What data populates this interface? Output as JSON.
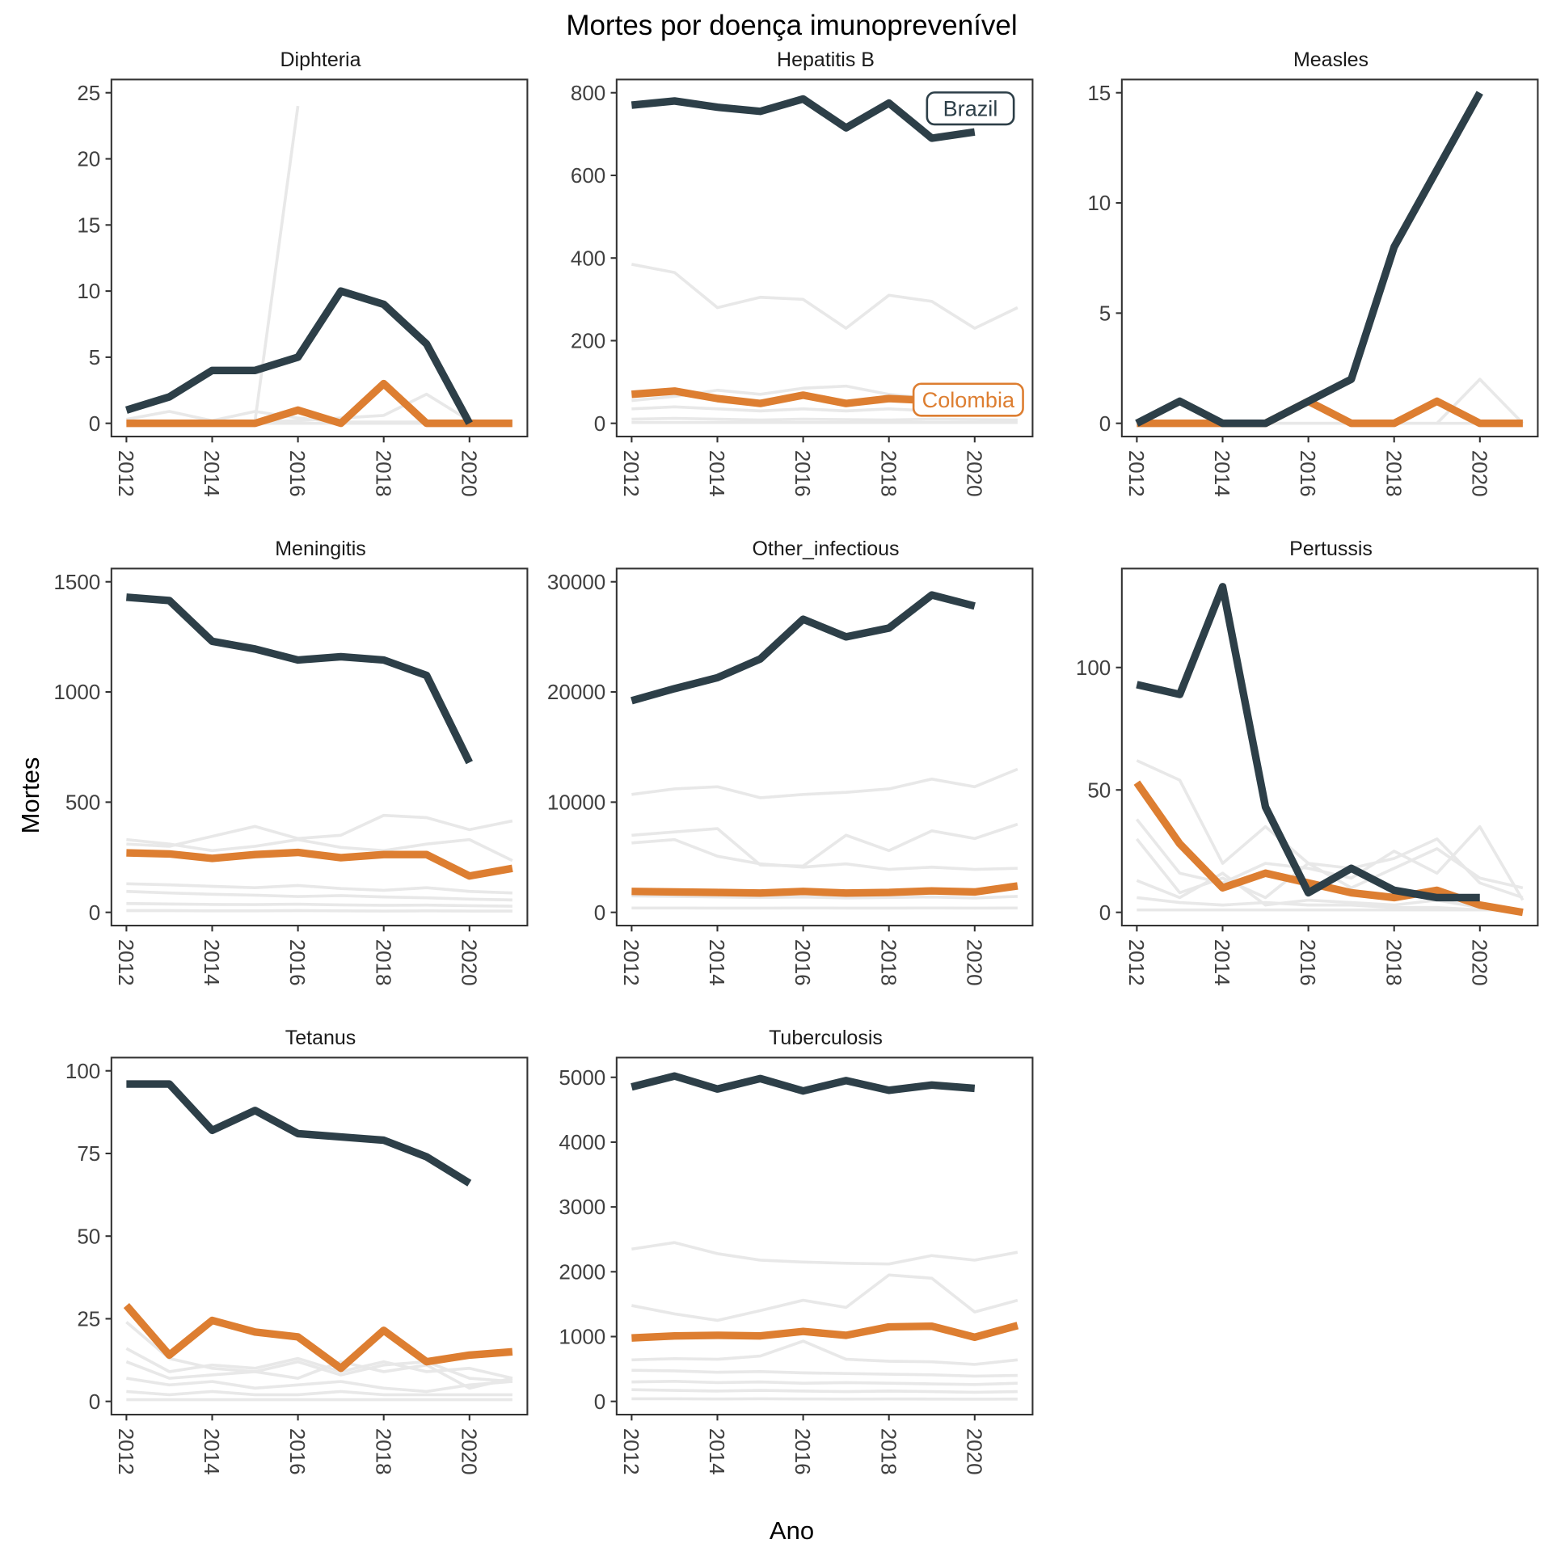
{
  "figure": {
    "title": "Mortes por doença imunoprevenível",
    "ylabel": "Mortes",
    "xlabel": "Ano"
  },
  "colors": {
    "brazil": "#2d3f48",
    "colombia": "#dd7e31",
    "other": "#e8e8e8",
    "axis": "#333333",
    "tick_text": "#404040"
  },
  "x": {
    "years": [
      2012,
      2013,
      2014,
      2015,
      2016,
      2017,
      2018,
      2019,
      2020,
      2021
    ],
    "ticks": [
      2012,
      2014,
      2016,
      2018,
      2020
    ]
  },
  "legend": {
    "brazil_label": "Brazil",
    "colombia_label": "Colombia"
  },
  "chart_data": [
    {
      "type": "line",
      "title": "Diphteria",
      "ylim": [
        0,
        25
      ],
      "yticks": [
        0,
        5,
        10,
        15,
        20,
        25
      ],
      "series": [
        {
          "name": "Brazil",
          "role": "brazil",
          "values": [
            1,
            2,
            4,
            4,
            5,
            10,
            9,
            6,
            0,
            null
          ]
        },
        {
          "name": "Colombia",
          "role": "colombia",
          "values": [
            0,
            0,
            0,
            0,
            1,
            0,
            3,
            0,
            0,
            0
          ]
        },
        {
          "name": "other-1",
          "role": "other",
          "values": [
            null,
            null,
            null,
            0.2,
            24,
            null,
            null,
            null,
            null,
            null
          ]
        },
        {
          "name": "other-2",
          "role": "other",
          "values": [
            0.3,
            0.9,
            0.2,
            0.9,
            0.4,
            0.1,
            0.1,
            0.1,
            0.1,
            0.1
          ]
        },
        {
          "name": "other-3",
          "role": "other",
          "values": [
            0.1,
            0.1,
            0.1,
            0.1,
            0.2,
            0.4,
            0.6,
            2.2,
            0.2,
            0.1
          ]
        },
        {
          "name": "other-4",
          "role": "other",
          "values": [
            0,
            0,
            0,
            0,
            0,
            0,
            0,
            0,
            0,
            0
          ]
        }
      ],
      "annotations": []
    },
    {
      "type": "line",
      "title": "Hepatitis B",
      "ylim": [
        0,
        800
      ],
      "yticks": [
        0,
        200,
        400,
        600,
        800
      ],
      "series": [
        {
          "name": "Brazil",
          "role": "brazil",
          "values": [
            770,
            780,
            765,
            755,
            785,
            715,
            775,
            690,
            705,
            null
          ]
        },
        {
          "name": "Colombia",
          "role": "colombia",
          "values": [
            70,
            78,
            60,
            48,
            68,
            48,
            60,
            55,
            58,
            65
          ]
        },
        {
          "name": "other-1",
          "role": "other",
          "values": [
            385,
            365,
            280,
            305,
            300,
            230,
            310,
            295,
            230,
            280
          ]
        },
        {
          "name": "other-2",
          "role": "other",
          "values": [
            55,
            65,
            80,
            70,
            85,
            90,
            70,
            60,
            55,
            50
          ]
        },
        {
          "name": "other-3",
          "role": "other",
          "values": [
            35,
            40,
            35,
            30,
            35,
            30,
            35,
            30,
            25,
            30
          ]
        },
        {
          "name": "other-4",
          "role": "other",
          "values": [
            10,
            12,
            10,
            8,
            10,
            9,
            8,
            10,
            9,
            8
          ]
        },
        {
          "name": "other-5",
          "role": "other",
          "values": [
            2,
            2,
            2,
            2,
            2,
            2,
            2,
            2,
            2,
            2
          ]
        }
      ],
      "annotations": [
        {
          "label": "Brazil",
          "role": "brazil",
          "x": 2019.9,
          "y": 762
        },
        {
          "label": "Colombia",
          "role": "colombia",
          "x": 2019.85,
          "y": 57
        }
      ]
    },
    {
      "type": "line",
      "title": "Measles",
      "ylim": [
        0,
        15
      ],
      "yticks": [
        0,
        5,
        10,
        15
      ],
      "series": [
        {
          "name": "Brazil",
          "role": "brazil",
          "values": [
            0,
            1,
            0,
            0,
            1,
            2,
            8,
            11.5,
            15,
            null
          ]
        },
        {
          "name": "Colombia",
          "role": "colombia",
          "values": [
            0,
            0,
            0,
            0,
            1,
            0,
            0,
            1,
            0,
            0
          ]
        },
        {
          "name": "other-1",
          "role": "other",
          "values": [
            0,
            0,
            0,
            0,
            0,
            0,
            0,
            0,
            2,
            0
          ]
        },
        {
          "name": "other-2",
          "role": "other",
          "values": [
            0,
            0,
            0,
            0,
            0,
            0,
            0,
            0,
            0,
            0
          ]
        }
      ],
      "annotations": []
    },
    {
      "type": "line",
      "title": "Meningitis",
      "ylim": [
        0,
        1500
      ],
      "yticks": [
        0,
        500,
        1000,
        1500
      ],
      "series": [
        {
          "name": "Brazil",
          "role": "brazil",
          "values": [
            1430,
            1415,
            1230,
            1195,
            1145,
            1160,
            1145,
            1075,
            680,
            null
          ]
        },
        {
          "name": "Colombia",
          "role": "colombia",
          "values": [
            270,
            265,
            245,
            262,
            272,
            248,
            262,
            262,
            165,
            200
          ]
        },
        {
          "name": "other-1",
          "role": "other",
          "values": [
            310,
            300,
            345,
            390,
            335,
            350,
            440,
            430,
            375,
            415
          ]
        },
        {
          "name": "other-2",
          "role": "other",
          "values": [
            330,
            310,
            280,
            300,
            330,
            295,
            280,
            310,
            330,
            235
          ]
        },
        {
          "name": "other-3",
          "role": "other",
          "values": [
            130,
            125,
            118,
            112,
            122,
            108,
            100,
            112,
            95,
            88
          ]
        },
        {
          "name": "other-4",
          "role": "other",
          "values": [
            95,
            88,
            82,
            78,
            72,
            76,
            70,
            66,
            60,
            56
          ]
        },
        {
          "name": "other-5",
          "role": "other",
          "values": [
            40,
            38,
            36,
            35,
            37,
            34,
            32,
            33,
            30,
            28
          ]
        },
        {
          "name": "other-6",
          "role": "other",
          "values": [
            8,
            8,
            7,
            7,
            8,
            7,
            6,
            7,
            6,
            6
          ]
        }
      ],
      "annotations": []
    },
    {
      "type": "line",
      "title": "Other_infectious",
      "ylim": [
        0,
        30000
      ],
      "yticks": [
        0,
        10000,
        20000,
        30000
      ],
      "series": [
        {
          "name": "Brazil",
          "role": "brazil",
          "values": [
            19200,
            20300,
            21300,
            23000,
            26600,
            25000,
            25800,
            28800,
            27800,
            null
          ]
        },
        {
          "name": "Colombia",
          "role": "colombia",
          "values": [
            1900,
            1850,
            1800,
            1750,
            1900,
            1750,
            1800,
            1950,
            1850,
            2400
          ]
        },
        {
          "name": "other-1",
          "role": "other",
          "values": [
            10700,
            11200,
            11400,
            10400,
            10700,
            10900,
            11200,
            12100,
            11400,
            13000
          ]
        },
        {
          "name": "other-2",
          "role": "other",
          "values": [
            7000,
            7300,
            7600,
            4300,
            4200,
            7000,
            5600,
            7400,
            6700,
            8000
          ]
        },
        {
          "name": "other-3",
          "role": "other",
          "values": [
            6300,
            6600,
            5100,
            4400,
            4100,
            4400,
            3900,
            4100,
            3900,
            4000
          ]
        },
        {
          "name": "other-4",
          "role": "other",
          "values": [
            1500,
            1450,
            1400,
            1350,
            1400,
            1300,
            1350,
            1400,
            1300,
            1450
          ]
        },
        {
          "name": "other-5",
          "role": "other",
          "values": [
            400,
            400,
            380,
            380,
            400,
            380,
            380,
            400,
            380,
            400
          ]
        }
      ],
      "annotations": []
    },
    {
      "type": "line",
      "title": "Pertussis",
      "ylim": [
        0,
        135
      ],
      "yticks": [
        0,
        50,
        100
      ],
      "series": [
        {
          "name": "Brazil",
          "role": "brazil",
          "values": [
            93,
            89,
            133,
            43,
            8,
            18,
            9,
            6,
            6,
            null
          ]
        },
        {
          "name": "Colombia",
          "role": "colombia",
          "values": [
            53,
            28,
            10,
            16,
            12,
            8,
            6,
            9,
            3,
            0
          ]
        },
        {
          "name": "other-1",
          "role": "other",
          "values": [
            62,
            54,
            20,
            35,
            20,
            18,
            22,
            30,
            12,
            6
          ]
        },
        {
          "name": "other-2",
          "role": "other",
          "values": [
            38,
            16,
            12,
            20,
            18,
            14,
            25,
            16,
            35,
            5
          ]
        },
        {
          "name": "other-3",
          "role": "other",
          "values": [
            30,
            8,
            14,
            6,
            20,
            10,
            18,
            26,
            14,
            10
          ]
        },
        {
          "name": "other-4",
          "role": "other",
          "values": [
            13,
            6,
            16,
            3,
            5,
            4,
            3,
            5,
            2,
            1
          ]
        },
        {
          "name": "other-5",
          "role": "other",
          "values": [
            6,
            4,
            3,
            4,
            3,
            3,
            2,
            2,
            1,
            1
          ]
        },
        {
          "name": "other-6",
          "role": "other",
          "values": [
            1,
            1,
            1,
            1,
            1,
            1,
            1,
            1,
            1,
            1
          ]
        }
      ],
      "annotations": []
    },
    {
      "type": "line",
      "title": "Tetanus",
      "ylim": [
        0,
        100
      ],
      "yticks": [
        0,
        25,
        50,
        75,
        100
      ],
      "series": [
        {
          "name": "Brazil",
          "role": "brazil",
          "values": [
            96,
            96,
            82,
            88,
            81,
            80,
            79,
            74,
            66,
            null
          ]
        },
        {
          "name": "Colombia",
          "role": "colombia",
          "values": [
            29,
            14,
            24.5,
            21,
            19.5,
            10,
            21.5,
            12,
            14,
            15
          ]
        },
        {
          "name": "other-1",
          "role": "other",
          "values": [
            24,
            13,
            10,
            9,
            12,
            8,
            11,
            12,
            7,
            6
          ]
        },
        {
          "name": "other-2",
          "role": "other",
          "values": [
            16,
            9,
            11,
            10,
            13,
            9,
            12,
            9,
            10,
            7
          ]
        },
        {
          "name": "other-3",
          "role": "other",
          "values": [
            12,
            7,
            8,
            9,
            7,
            12,
            9,
            11,
            4,
            7
          ]
        },
        {
          "name": "other-4",
          "role": "other",
          "values": [
            7,
            5,
            6,
            4,
            5,
            6,
            4,
            3,
            5,
            6
          ]
        },
        {
          "name": "other-5",
          "role": "other",
          "values": [
            3,
            2,
            3,
            2,
            2,
            3,
            2,
            2,
            2,
            2
          ]
        },
        {
          "name": "other-6",
          "role": "other",
          "values": [
            0.5,
            0.5,
            0.5,
            0.5,
            0.5,
            0.5,
            0.5,
            0.5,
            0.5,
            0.5
          ]
        }
      ],
      "annotations": []
    },
    {
      "type": "line",
      "title": "Tuberculosis",
      "ylim": [
        0,
        5100
      ],
      "yticks": [
        0,
        1000,
        2000,
        3000,
        4000,
        5000
      ],
      "series": [
        {
          "name": "Brazil",
          "role": "brazil",
          "values": [
            4850,
            5020,
            4820,
            4980,
            4790,
            4950,
            4800,
            4880,
            4830,
            null
          ]
        },
        {
          "name": "Colombia",
          "role": "colombia",
          "values": [
            980,
            1010,
            1020,
            1010,
            1080,
            1020,
            1150,
            1160,
            990,
            1170
          ]
        },
        {
          "name": "other-1",
          "role": "other",
          "values": [
            2350,
            2450,
            2280,
            2180,
            2150,
            2130,
            2120,
            2250,
            2180,
            2300
          ]
        },
        {
          "name": "other-2",
          "role": "other",
          "values": [
            1480,
            1350,
            1250,
            1400,
            1560,
            1450,
            1950,
            1900,
            1380,
            1560
          ]
        },
        {
          "name": "other-3",
          "role": "other",
          "values": [
            640,
            660,
            650,
            700,
            930,
            650,
            620,
            610,
            570,
            640
          ]
        },
        {
          "name": "other-4",
          "role": "other",
          "values": [
            480,
            470,
            450,
            460,
            440,
            430,
            420,
            410,
            390,
            400
          ]
        },
        {
          "name": "other-5",
          "role": "other",
          "values": [
            300,
            310,
            290,
            300,
            280,
            290,
            280,
            270,
            260,
            280
          ]
        },
        {
          "name": "other-6",
          "role": "other",
          "values": [
            180,
            170,
            160,
            170,
            160,
            150,
            160,
            150,
            140,
            150
          ]
        },
        {
          "name": "other-7",
          "role": "other",
          "values": [
            40,
            40,
            38,
            40,
            38,
            36,
            38,
            36,
            34,
            36
          ]
        }
      ],
      "annotations": []
    }
  ]
}
